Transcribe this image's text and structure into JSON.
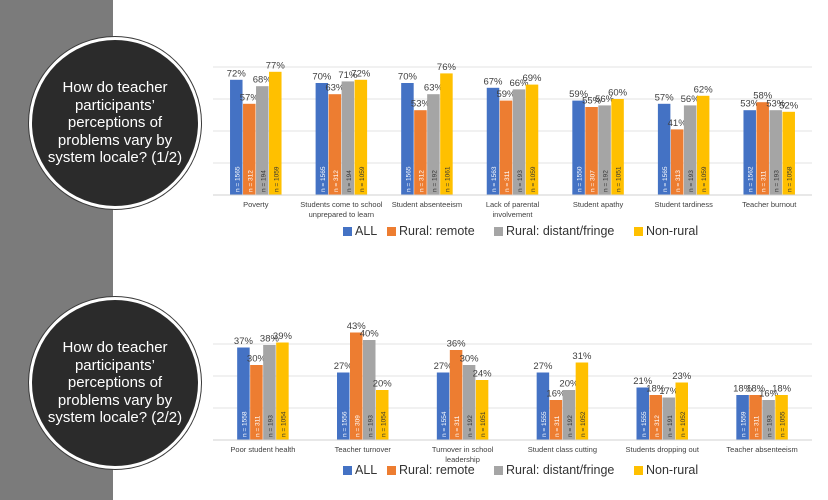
{
  "colors": {
    "all": "#4472c4",
    "rural_remote": "#ed7d31",
    "rural_distant": "#a5a5a5",
    "non_rural": "#ffc000"
  },
  "questions": [
    "How do teacher participants’ perceptions of problems vary by system locale? (1/2)",
    "How do teacher participants’ perceptions of problems vary by system locale? (2/2)"
  ],
  "chart_data": [
    {
      "type": "bar",
      "title": "",
      "xlabel": "",
      "ylabel": "",
      "ylim": [
        0,
        100
      ],
      "grid": true,
      "legend": "bottom",
      "categories": [
        "Poverty",
        "Students come to school unprepared to learn",
        "Student absenteeism",
        "Lack of parental involvement",
        "Student apathy",
        "Student tardiness",
        "Teacher burnout"
      ],
      "series": [
        {
          "name": "ALL",
          "values": [
            72,
            70,
            70,
            67,
            59,
            57,
            53
          ],
          "n": [
            "1565",
            "1565",
            "1565",
            "1563",
            "1550",
            "1565",
            "1562"
          ]
        },
        {
          "name": "Rural: remote",
          "values": [
            57,
            63,
            53,
            59,
            55,
            41,
            58
          ],
          "n": [
            "312",
            "312",
            "312",
            "311",
            "307",
            "313",
            "311"
          ]
        },
        {
          "name": "Rural: distant/fringe",
          "values": [
            68,
            71,
            63,
            66,
            56,
            56,
            53
          ],
          "n": [
            "194",
            "194",
            "192",
            "193",
            "192",
            "193",
            "193"
          ]
        },
        {
          "name": "Non-rural",
          "values": [
            77,
            72,
            76,
            69,
            60,
            62,
            52
          ],
          "n": [
            "1059",
            "1059",
            "1061",
            "1059",
            "1051",
            "1059",
            "1058"
          ]
        }
      ]
    },
    {
      "type": "bar",
      "title": "",
      "xlabel": "",
      "ylabel": "",
      "ylim": [
        0,
        100
      ],
      "grid": true,
      "legend": "bottom",
      "categories": [
        "Poor student health",
        "Teacher turnover",
        "Turnover in school leadership",
        "Student class cutting",
        "Students dropping out",
        "Teacher absenteeism"
      ],
      "series": [
        {
          "name": "ALL",
          "values": [
            37,
            27,
            27,
            27,
            21,
            18
          ],
          "n": [
            "1558",
            "1556",
            "1554",
            "1555",
            "1555",
            "1559"
          ]
        },
        {
          "name": "Rural: remote",
          "values": [
            30,
            43,
            36,
            16,
            18,
            18
          ],
          "n": [
            "311",
            "309",
            "311",
            "311",
            "312",
            "311"
          ]
        },
        {
          "name": "Rural: distant/fringe",
          "values": [
            38,
            40,
            30,
            20,
            17,
            16
          ],
          "n": [
            "193",
            "193",
            "192",
            "192",
            "191",
            "193"
          ]
        },
        {
          "name": "Non-rural",
          "values": [
            39,
            20,
            24,
            31,
            23,
            18
          ],
          "n": [
            "1054",
            "1054",
            "1051",
            "1052",
            "1052",
            "1055"
          ]
        }
      ]
    }
  ]
}
